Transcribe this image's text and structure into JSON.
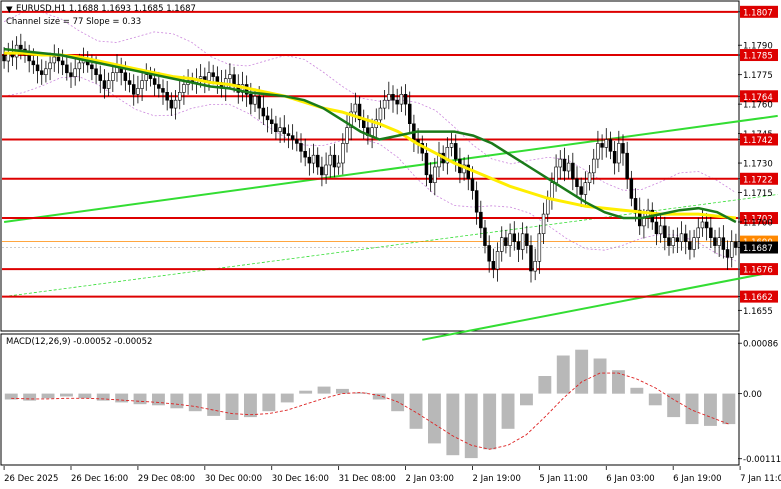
{
  "header": {
    "symbol_line": "EURUSD,H1  1.1688 1.1693 1.1685 1.1687",
    "channel_line": "Channel size = 77  Slope = 0.33"
  },
  "macd_label": "MACD(12,26,9) -0.00052 -0.00052",
  "colors": {
    "candle": "#000000",
    "ma_green": "#1a7a1a",
    "ma_yellow": "#ffee00",
    "level_red": "#dd0000",
    "channel_green": "#33dd33",
    "bollinger": "#cc88dd",
    "macd_hist": "#b8b8b8",
    "macd_signal": "#dd2222",
    "current_price_line": "#ff8800"
  },
  "chart_data": {
    "type": "candlestick",
    "symbol": "EURUSD",
    "timeframe": "H1",
    "price_axis": {
      "range": [
        1.1645,
        1.1812
      ],
      "ticks": [
        "1.1807",
        "1.1790",
        "1.1785",
        "1.1775",
        "1.1764",
        "1.1760",
        "1.1745",
        "1.1742",
        "1.1730",
        "1.1722",
        "1.1715",
        "1.1702",
        "1.1700",
        "1.1690",
        "1.1687",
        "1.1676",
        "1.1662",
        "1.1655"
      ],
      "tick_values": [
        1.1807,
        1.179,
        1.1785,
        1.1775,
        1.1764,
        1.176,
        1.1745,
        1.1742,
        1.173,
        1.1722,
        1.1715,
        1.1702,
        1.17,
        1.169,
        1.1687,
        1.1676,
        1.1662,
        1.1655
      ],
      "boxed_levels": [
        1.1807,
        1.1785,
        1.1764,
        1.1742,
        1.1722,
        1.1702,
        1.169,
        1.1687,
        1.1676,
        1.1662
      ]
    },
    "red_levels": [
      1.1807,
      1.1785,
      1.1764,
      1.1742,
      1.1722,
      1.1702,
      1.1676,
      1.1662
    ],
    "current_price": 1.1687,
    "last_bid_line": 1.169,
    "time_axis": {
      "labels": [
        "26 Dec 2025",
        "26 Dec 16:00",
        "29 Dec 08:00",
        "30 Dec 00:00",
        "30 Dec 16:00",
        "31 Dec 08:00",
        "2 Jan 03:00",
        "2 Jan 19:00",
        "5 Jan 11:00",
        "6 Jan 03:00",
        "6 Jan 19:00",
        "7 Jan 11:00"
      ],
      "label_bar_index": [
        0,
        16,
        32,
        48,
        64,
        80,
        96,
        112,
        128,
        144,
        160,
        176
      ]
    },
    "closes": [
      1.1782,
      1.1786,
      1.1784,
      1.179,
      1.1788,
      1.1785,
      1.1782,
      1.178,
      1.1777,
      1.1775,
      1.1778,
      1.1781,
      1.1784,
      1.1782,
      1.178,
      1.1776,
      1.1774,
      1.1778,
      1.1781,
      1.1783,
      1.178,
      1.1778,
      1.1775,
      1.1772,
      1.1768,
      1.1772,
      1.1776,
      1.1779,
      1.1776,
      1.1772,
      1.177,
      1.1765,
      1.1768,
      1.1772,
      1.1775,
      1.1773,
      1.177,
      1.1768,
      1.1766,
      1.1762,
      1.1758,
      1.1762,
      1.1766,
      1.177,
      1.1772,
      1.1771,
      1.1773,
      1.1774,
      1.1772,
      1.1776,
      1.1774,
      1.1771,
      1.1768,
      1.1773,
      1.1775,
      1.177,
      1.1766,
      1.177,
      1.1765,
      1.176,
      1.1764,
      1.1758,
      1.1754,
      1.1752,
      1.175,
      1.1746,
      1.1748,
      1.1745,
      1.1744,
      1.1742,
      1.174,
      1.1736,
      1.1733,
      1.173,
      1.1734,
      1.1728,
      1.1724,
      1.1729,
      1.1734,
      1.1728,
      1.173,
      1.174,
      1.1748,
      1.1756,
      1.176,
      1.1752,
      1.1748,
      1.1744,
      1.1748,
      1.1752,
      1.1758,
      1.1762,
      1.1765,
      1.1762,
      1.176,
      1.1765,
      1.176,
      1.175,
      1.1742,
      1.174,
      1.1735,
      1.1724,
      1.172,
      1.1728,
      1.1735,
      1.173,
      1.1738,
      1.174,
      1.1732,
      1.1725,
      1.1729,
      1.1722,
      1.1716,
      1.1705,
      1.1697,
      1.1688,
      1.168,
      1.1676,
      1.1685,
      1.1692,
      1.1688,
      1.1694,
      1.169,
      1.1686,
      1.1694,
      1.1688,
      1.1675,
      1.168,
      1.1694,
      1.1704,
      1.1712,
      1.172,
      1.1728,
      1.1732,
      1.1726,
      1.173,
      1.1722,
      1.1718,
      1.1714,
      1.172,
      1.1725,
      1.1732,
      1.174,
      1.1738,
      1.1742,
      1.1736,
      1.173,
      1.174,
      1.1735,
      1.1722,
      1.1712,
      1.1706,
      1.1698,
      1.1702,
      1.1706,
      1.17,
      1.1694,
      1.1698,
      1.1692,
      1.1688,
      1.1692,
      1.169,
      1.1694,
      1.169,
      1.1686,
      1.1692,
      1.1697,
      1.17,
      1.1697,
      1.1692,
      1.1688,
      1.1692,
      1.1686,
      1.1682,
      1.169,
      1.1687
    ],
    "ma_green": [
      1.1788,
      1.1787,
      1.1786,
      1.1785,
      1.1783,
      1.1781,
      1.1779,
      1.1777,
      1.1775,
      1.1773,
      1.1771,
      1.1769,
      1.1768,
      1.1766,
      1.1765,
      1.1764,
      1.1762,
      1.1758,
      1.1752,
      1.1746,
      1.1742,
      1.1744,
      1.1746,
      1.1746,
      1.1746,
      1.1744,
      1.174,
      1.1734,
      1.1728,
      1.1722,
      1.1716,
      1.171,
      1.1705,
      1.1702,
      1.1702,
      1.1704,
      1.1706,
      1.1707,
      1.1705,
      1.17
    ],
    "ma_yellow": [
      1.1786,
      1.1786,
      1.1785,
      1.1785,
      1.1784,
      1.1782,
      1.178,
      1.1778,
      1.1776,
      1.1774,
      1.1773,
      1.1771,
      1.177,
      1.1768,
      1.1766,
      1.1764,
      1.1761,
      1.1758,
      1.1756,
      1.1753,
      1.175,
      1.1746,
      1.174,
      1.1735,
      1.173,
      1.1726,
      1.1722,
      1.1718,
      1.1715,
      1.1712,
      1.171,
      1.1708,
      1.1707,
      1.1706,
      1.1705,
      1.1704,
      1.1704,
      1.1704,
      1.1703,
      1.1702
    ],
    "channel_lines": [
      {
        "x": [
          0,
          185
        ],
        "y": [
          1.17,
          1.1754
        ]
      },
      {
        "x": [
          0,
          185
        ],
        "y": [
          1.1662,
          1.1714
        ]
      },
      {
        "x": [
          100,
          185
        ],
        "y": [
          1.164,
          1.1675
        ]
      }
    ],
    "macd": {
      "axis_ticks": [
        "0.00086",
        "0.00",
        "-0.00111"
      ],
      "axis_values": [
        0.00086,
        0.0,
        -0.00111
      ],
      "hist_range": [
        -0.0012,
        0.001
      ],
      "hist": [
        -0.0001,
        -0.00012,
        -8e-05,
        -5e-05,
        -8e-05,
        -0.00012,
        -0.00015,
        -0.00018,
        -0.0002,
        -0.00025,
        -0.0003,
        -0.00038,
        -0.00045,
        -0.0004,
        -0.0003,
        -0.00015,
        5e-05,
        0.00012,
        8e-05,
        2e-05,
        -0.0001,
        -0.0003,
        -0.0006,
        -0.00085,
        -0.00105,
        -0.0011,
        -0.00095,
        -0.0006,
        -0.0002,
        0.0003,
        0.00065,
        0.00075,
        0.0006,
        0.0004,
        0.0001,
        -0.0002,
        -0.0004,
        -0.00052,
        -0.00055,
        -0.00052
      ],
      "signal": [
        -8e-05,
        -9e-05,
        -9e-05,
        -8e-05,
        -8e-05,
        -9e-05,
        -0.00011,
        -0.00013,
        -0.00015,
        -0.00018,
        -0.00022,
        -0.00028,
        -0.00034,
        -0.00036,
        -0.00034,
        -0.00028,
        -0.00018,
        -8e-05,
        0.0,
        2e-05,
        -3e-05,
        -0.00014,
        -0.00032,
        -0.00052,
        -0.00072,
        -0.00088,
        -0.00095,
        -0.00088,
        -0.0007,
        -0.0004,
        -8e-05,
        0.0002,
        0.00035,
        0.00035,
        0.00025,
        0.0001,
        -0.0001,
        -0.00028,
        -0.0004,
        -0.00052
      ]
    }
  }
}
